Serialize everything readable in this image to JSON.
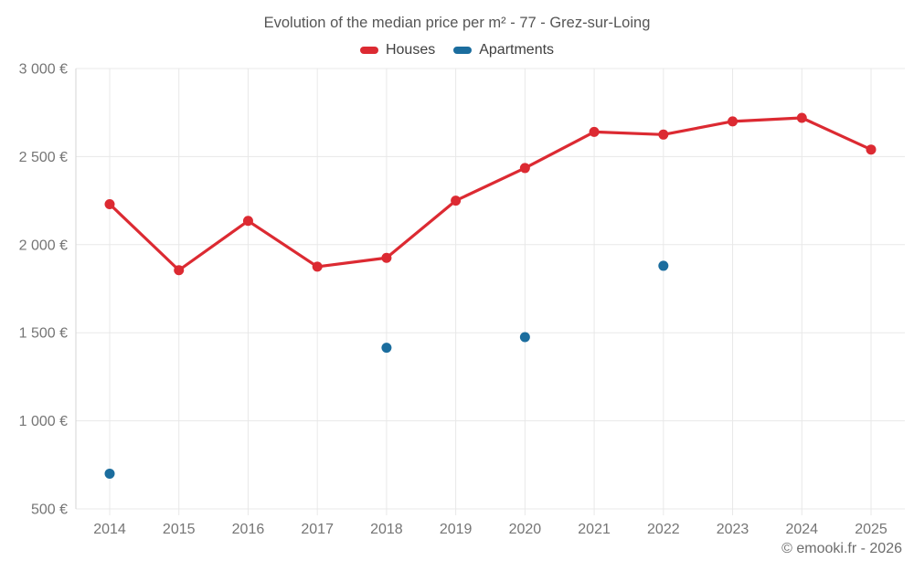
{
  "chart_data": {
    "type": "line",
    "title": "Evolution of the median price per m² - 77 - Grez-sur-Loing",
    "x": [
      2014,
      2015,
      2016,
      2017,
      2018,
      2019,
      2020,
      2021,
      2022,
      2023,
      2024,
      2025
    ],
    "series": [
      {
        "name": "Houses",
        "color": "#dc2a32",
        "style": "line+markers",
        "values": [
          2230,
          1855,
          2135,
          1875,
          1925,
          2250,
          2435,
          2640,
          2625,
          2700,
          2720,
          2540
        ]
      },
      {
        "name": "Apartments",
        "color": "#1b6d9e",
        "style": "markers",
        "values": [
          700,
          null,
          null,
          null,
          1415,
          null,
          1475,
          null,
          1880,
          null,
          null,
          null
        ]
      }
    ],
    "ylim": [
      500,
      3000
    ],
    "ytick_step": 500,
    "ytick_suffix": " €",
    "grid": true,
    "legend_position": "top"
  },
  "footer": {
    "copyright": "© emooki.fr - 2026"
  },
  "colors": {
    "background": "#ffffff",
    "grid": "#e8e8e8",
    "axis": "#d6d6d6",
    "tick_label": "#757575",
    "title_text": "#565656",
    "legend_text": "#3f3f3f",
    "copyright_text": "#6d6d6d"
  }
}
